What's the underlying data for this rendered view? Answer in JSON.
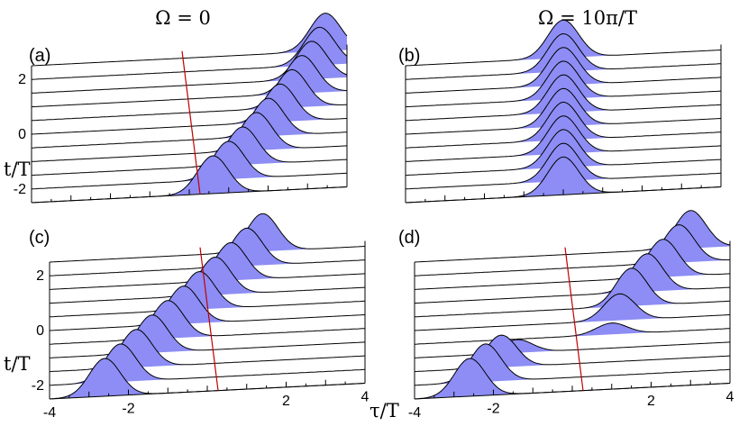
{
  "column_titles": [
    "Ω = 0",
    "Ω = 10π/T"
  ],
  "y_axis_label": "t/T",
  "x_axis_label": "τ/T",
  "y_tick_labels": [
    "2",
    "0",
    "-2"
  ],
  "x_tick_labels": [
    "-4",
    "-2",
    "2",
    "4"
  ],
  "colors": {
    "fill": "#8d8df5",
    "trace": "#000000",
    "marker": "#c00000"
  },
  "chart_data": [
    {
      "type": "area",
      "label": "(a)",
      "x_range": [
        -4,
        4
      ],
      "t_values": [
        -2.5,
        -2,
        -1.5,
        -1,
        -0.5,
        0,
        0.5,
        1,
        1.5,
        2,
        2.5
      ],
      "peak_centers": [
        0.6,
        1.0,
        1.35,
        1.7,
        2.0,
        2.3,
        2.6,
        2.85,
        3.1,
        3.3,
        3.45
      ],
      "peak_amplitudes": [
        1,
        1,
        1,
        1,
        1,
        1,
        1,
        1,
        1,
        1,
        1
      ],
      "peak_width": 0.55,
      "marker_x": 0
    },
    {
      "type": "area",
      "label": "(b)",
      "x_range": [
        -4,
        4
      ],
      "t_values": [
        -2.5,
        -2,
        -1.5,
        -1,
        -0.5,
        0,
        0.5,
        1,
        1.5,
        2,
        2.5
      ],
      "peak_centers": [
        0,
        0,
        0,
        0,
        0,
        0,
        0,
        0,
        0,
        0,
        0
      ],
      "peak_amplitudes": [
        1,
        1,
        1,
        1,
        1,
        1,
        1,
        1,
        1,
        1,
        1
      ],
      "peak_width": 0.55,
      "marker_x": null
    },
    {
      "type": "area",
      "label": "(c)",
      "x_range": [
        -4,
        4
      ],
      "t_values": [
        -2.5,
        -2,
        -1.5,
        -1,
        -0.5,
        0,
        0.5,
        1,
        1.5,
        2,
        2.5
      ],
      "peak_centers": [
        -2.6,
        -2.2,
        -1.8,
        -1.4,
        -1.0,
        -0.6,
        -0.2,
        0.2,
        0.6,
        1.0,
        1.4
      ],
      "peak_amplitudes": [
        1,
        1,
        1,
        1,
        1,
        1,
        1,
        1,
        1,
        1,
        1
      ],
      "peak_width": 0.55,
      "marker_x": 0
    },
    {
      "type": "area",
      "label": "(d)",
      "x_range": [
        -4,
        4
      ],
      "t_values": [
        -2.5,
        -2,
        -1.5,
        -1,
        -0.5,
        0,
        0.5,
        1,
        1.5,
        2,
        2.5
      ],
      "peak_centers": [
        -2.6,
        -2.2,
        -1.8,
        -1.4,
        1.0,
        1.2,
        1.5,
        1.9,
        2.3,
        2.7,
        3.0
      ],
      "peak_amplitudes": [
        1,
        1,
        0.85,
        0.35,
        0.3,
        0.7,
        1,
        1,
        1,
        1,
        1
      ],
      "peak_width": 0.55,
      "marker_x": 0
    }
  ]
}
